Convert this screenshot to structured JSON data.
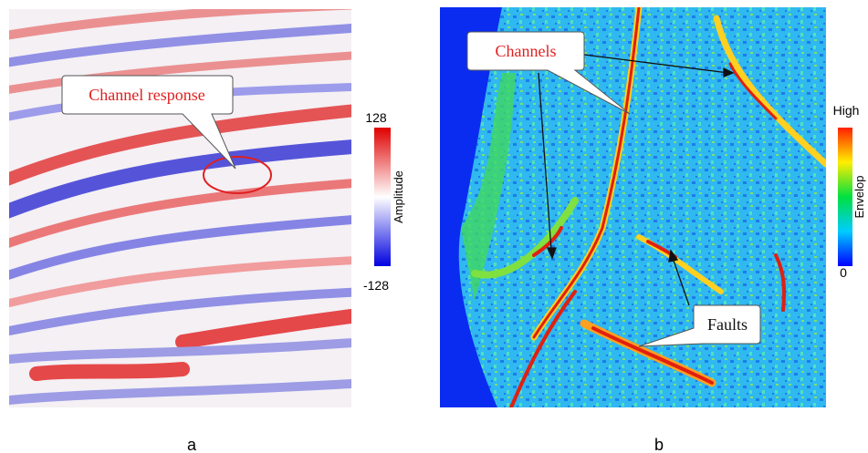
{
  "panel_a": {
    "label": "a",
    "callout": "Channel response",
    "colorbar": {
      "max": "128",
      "min": "-128",
      "title": "Amplitude"
    }
  },
  "panel_b": {
    "label": "b",
    "callouts": [
      "Channels",
      "Faults"
    ],
    "colorbar": {
      "max": "High",
      "min": "0",
      "title": "Envelop"
    }
  }
}
